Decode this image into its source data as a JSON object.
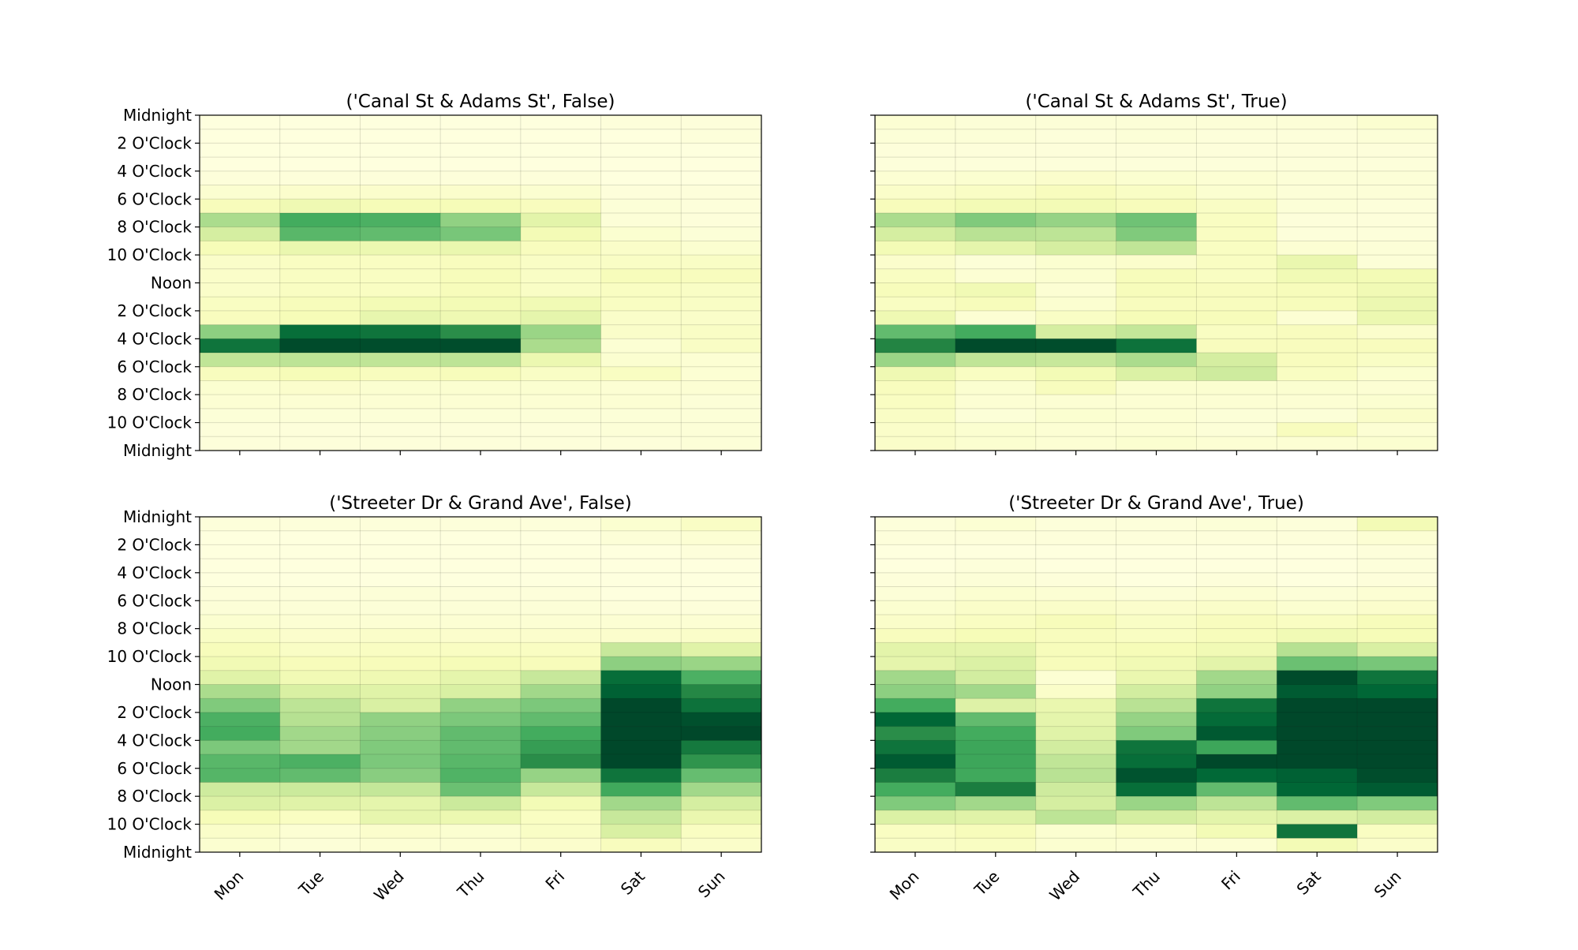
{
  "chart_data": [
    {
      "type": "heatmap",
      "title": "('Canal St & Adams St', False)",
      "colormap": "YlGn",
      "vmin": 0,
      "vmax": 1,
      "categories": [
        "Mon",
        "Tue",
        "Wed",
        "Thu",
        "Fri",
        "Sat",
        "Sun"
      ],
      "y_tick_labels": [
        "Midnight",
        "2 O'Clock",
        "4 O'Clock",
        "6 O'Clock",
        "8 O'Clock",
        "10 O'Clock",
        "Noon",
        "2 O'Clock",
        "4 O'Clock",
        "6 O'Clock",
        "8 O'Clock",
        "10 O'Clock",
        "Midnight"
      ],
      "rows": 24,
      "values": [
        [
          0.02,
          0.02,
          0.02,
          0.02,
          0.02,
          0.03,
          0.03
        ],
        [
          0.02,
          0.02,
          0.02,
          0.02,
          0.02,
          0.02,
          0.03
        ],
        [
          0.02,
          0.02,
          0.02,
          0.02,
          0.02,
          0.02,
          0.02
        ],
        [
          0.02,
          0.02,
          0.02,
          0.02,
          0.02,
          0.02,
          0.02
        ],
        [
          0.03,
          0.03,
          0.03,
          0.03,
          0.03,
          0.02,
          0.02
        ],
        [
          0.06,
          0.07,
          0.07,
          0.07,
          0.06,
          0.03,
          0.03
        ],
        [
          0.12,
          0.16,
          0.13,
          0.13,
          0.11,
          0.04,
          0.03
        ],
        [
          0.38,
          0.62,
          0.6,
          0.44,
          0.21,
          0.04,
          0.03
        ],
        [
          0.26,
          0.57,
          0.55,
          0.5,
          0.14,
          0.06,
          0.04
        ],
        [
          0.13,
          0.18,
          0.17,
          0.18,
          0.11,
          0.08,
          0.06
        ],
        [
          0.08,
          0.1,
          0.1,
          0.11,
          0.09,
          0.09,
          0.09
        ],
        [
          0.08,
          0.1,
          0.1,
          0.12,
          0.09,
          0.12,
          0.11
        ],
        [
          0.08,
          0.1,
          0.1,
          0.12,
          0.09,
          0.1,
          0.09
        ],
        [
          0.1,
          0.12,
          0.14,
          0.14,
          0.15,
          0.1,
          0.09
        ],
        [
          0.11,
          0.13,
          0.19,
          0.16,
          0.2,
          0.08,
          0.08
        ],
        [
          0.45,
          0.85,
          0.82,
          0.72,
          0.42,
          0.08,
          0.09
        ],
        [
          0.82,
          0.98,
          0.97,
          0.97,
          0.38,
          0.05,
          0.09
        ],
        [
          0.32,
          0.33,
          0.32,
          0.33,
          0.17,
          0.06,
          0.05
        ],
        [
          0.11,
          0.13,
          0.11,
          0.12,
          0.09,
          0.1,
          0.05
        ],
        [
          0.06,
          0.07,
          0.06,
          0.06,
          0.06,
          0.05,
          0.05
        ],
        [
          0.05,
          0.05,
          0.05,
          0.05,
          0.05,
          0.05,
          0.04
        ],
        [
          0.04,
          0.04,
          0.04,
          0.04,
          0.04,
          0.04,
          0.04
        ],
        [
          0.03,
          0.03,
          0.03,
          0.03,
          0.03,
          0.04,
          0.04
        ],
        [
          0.03,
          0.03,
          0.03,
          0.03,
          0.03,
          0.03,
          0.04
        ]
      ]
    },
    {
      "type": "heatmap",
      "title": "('Canal St & Adams St', True)",
      "colormap": "YlGn",
      "vmin": 0,
      "vmax": 1,
      "categories": [
        "Mon",
        "Tue",
        "Wed",
        "Thu",
        "Fri",
        "Sat",
        "Sun"
      ],
      "y_tick_labels": [],
      "rows": 24,
      "values": [
        [
          0.05,
          0.04,
          0.04,
          0.04,
          0.04,
          0.04,
          0.06
        ],
        [
          0.04,
          0.04,
          0.03,
          0.04,
          0.03,
          0.03,
          0.04
        ],
        [
          0.03,
          0.03,
          0.03,
          0.03,
          0.03,
          0.03,
          0.03
        ],
        [
          0.03,
          0.03,
          0.03,
          0.03,
          0.03,
          0.03,
          0.03
        ],
        [
          0.05,
          0.06,
          0.07,
          0.06,
          0.05,
          0.04,
          0.04
        ],
        [
          0.08,
          0.09,
          0.11,
          0.09,
          0.06,
          0.04,
          0.04
        ],
        [
          0.12,
          0.14,
          0.14,
          0.12,
          0.09,
          0.04,
          0.03
        ],
        [
          0.38,
          0.48,
          0.43,
          0.52,
          0.1,
          0.03,
          0.03
        ],
        [
          0.26,
          0.34,
          0.33,
          0.48,
          0.1,
          0.03,
          0.03
        ],
        [
          0.14,
          0.2,
          0.26,
          0.32,
          0.1,
          0.05,
          0.04
        ],
        [
          0.07,
          0.04,
          0.06,
          0.07,
          0.1,
          0.18,
          0.04
        ],
        [
          0.1,
          0.05,
          0.06,
          0.12,
          0.1,
          0.15,
          0.14
        ],
        [
          0.12,
          0.15,
          0.05,
          0.12,
          0.11,
          0.12,
          0.15
        ],
        [
          0.1,
          0.12,
          0.06,
          0.11,
          0.11,
          0.12,
          0.17
        ],
        [
          0.16,
          0.05,
          0.09,
          0.13,
          0.12,
          0.05,
          0.17
        ],
        [
          0.55,
          0.62,
          0.26,
          0.31,
          0.1,
          0.11,
          0.07
        ],
        [
          0.75,
          0.98,
          0.97,
          0.83,
          0.11,
          0.11,
          0.11
        ],
        [
          0.42,
          0.32,
          0.3,
          0.38,
          0.26,
          0.11,
          0.09
        ],
        [
          0.16,
          0.1,
          0.14,
          0.24,
          0.28,
          0.1,
          0.06
        ],
        [
          0.11,
          0.06,
          0.11,
          0.06,
          0.06,
          0.06,
          0.05
        ],
        [
          0.1,
          0.05,
          0.05,
          0.05,
          0.05,
          0.05,
          0.06
        ],
        [
          0.09,
          0.04,
          0.06,
          0.05,
          0.04,
          0.04,
          0.08
        ],
        [
          0.08,
          0.06,
          0.05,
          0.05,
          0.04,
          0.11,
          0.05
        ],
        [
          0.08,
          0.06,
          0.05,
          0.06,
          0.05,
          0.05,
          0.06
        ]
      ]
    },
    {
      "type": "heatmap",
      "title": "('Streeter Dr & Grand Ave', False)",
      "colormap": "YlGn",
      "vmin": 0,
      "vmax": 1,
      "categories": [
        "Mon",
        "Tue",
        "Wed",
        "Thu",
        "Fri",
        "Sat",
        "Sun"
      ],
      "y_tick_labels": [
        "Midnight",
        "2 O'Clock",
        "4 O'Clock",
        "6 O'Clock",
        "8 O'Clock",
        "10 O'Clock",
        "Noon",
        "2 O'Clock",
        "4 O'Clock",
        "6 O'Clock",
        "8 O'Clock",
        "10 O'Clock",
        "Midnight"
      ],
      "rows": 24,
      "values": [
        [
          0.03,
          0.03,
          0.03,
          0.03,
          0.03,
          0.06,
          0.09
        ],
        [
          0.02,
          0.02,
          0.02,
          0.02,
          0.02,
          0.04,
          0.05
        ],
        [
          0.02,
          0.02,
          0.02,
          0.02,
          0.02,
          0.02,
          0.03
        ],
        [
          0.02,
          0.02,
          0.02,
          0.02,
          0.02,
          0.02,
          0.02
        ],
        [
          0.02,
          0.02,
          0.02,
          0.02,
          0.02,
          0.02,
          0.02
        ],
        [
          0.03,
          0.03,
          0.04,
          0.03,
          0.03,
          0.02,
          0.02
        ],
        [
          0.04,
          0.04,
          0.04,
          0.04,
          0.04,
          0.03,
          0.03
        ],
        [
          0.06,
          0.05,
          0.05,
          0.05,
          0.05,
          0.05,
          0.05
        ],
        [
          0.09,
          0.07,
          0.08,
          0.07,
          0.07,
          0.07,
          0.08
        ],
        [
          0.12,
          0.09,
          0.1,
          0.1,
          0.1,
          0.3,
          0.22
        ],
        [
          0.15,
          0.12,
          0.12,
          0.13,
          0.12,
          0.45,
          0.42
        ],
        [
          0.22,
          0.15,
          0.16,
          0.2,
          0.3,
          0.85,
          0.6
        ],
        [
          0.38,
          0.25,
          0.22,
          0.25,
          0.4,
          0.9,
          0.74
        ],
        [
          0.48,
          0.33,
          0.25,
          0.44,
          0.49,
          0.99,
          0.83
        ],
        [
          0.6,
          0.35,
          0.44,
          0.49,
          0.55,
          0.99,
          0.96
        ],
        [
          0.62,
          0.4,
          0.46,
          0.55,
          0.62,
          0.99,
          0.99
        ],
        [
          0.49,
          0.4,
          0.48,
          0.55,
          0.67,
          0.99,
          0.8
        ],
        [
          0.57,
          0.6,
          0.49,
          0.57,
          0.72,
          0.99,
          0.7
        ],
        [
          0.58,
          0.55,
          0.46,
          0.59,
          0.43,
          0.82,
          0.54
        ],
        [
          0.28,
          0.29,
          0.31,
          0.53,
          0.3,
          0.63,
          0.4
        ],
        [
          0.24,
          0.22,
          0.2,
          0.29,
          0.14,
          0.4,
          0.26
        ],
        [
          0.13,
          0.1,
          0.19,
          0.17,
          0.1,
          0.3,
          0.18
        ],
        [
          0.08,
          0.05,
          0.07,
          0.06,
          0.09,
          0.25,
          0.1
        ],
        [
          0.06,
          0.04,
          0.05,
          0.05,
          0.07,
          0.11,
          0.08
        ]
      ]
    },
    {
      "type": "heatmap",
      "title": "('Streeter Dr & Grand Ave', True)",
      "colormap": "YlGn",
      "vmin": 0,
      "vmax": 1,
      "categories": [
        "Mon",
        "Tue",
        "Wed",
        "Thu",
        "Fri",
        "Sat",
        "Sun"
      ],
      "y_tick_labels": [],
      "rows": 24,
      "values": [
        [
          0.03,
          0.05,
          0.03,
          0.03,
          0.04,
          0.03,
          0.14
        ],
        [
          0.03,
          0.03,
          0.03,
          0.03,
          0.03,
          0.03,
          0.05
        ],
        [
          0.02,
          0.02,
          0.02,
          0.02,
          0.02,
          0.02,
          0.03
        ],
        [
          0.02,
          0.03,
          0.02,
          0.02,
          0.02,
          0.02,
          0.03
        ],
        [
          0.03,
          0.04,
          0.03,
          0.02,
          0.03,
          0.02,
          0.03
        ],
        [
          0.04,
          0.06,
          0.05,
          0.04,
          0.05,
          0.04,
          0.05
        ],
        [
          0.06,
          0.08,
          0.08,
          0.07,
          0.08,
          0.06,
          0.07
        ],
        [
          0.08,
          0.1,
          0.12,
          0.09,
          0.11,
          0.1,
          0.12
        ],
        [
          0.11,
          0.13,
          0.11,
          0.1,
          0.12,
          0.15,
          0.13
        ],
        [
          0.21,
          0.2,
          0.12,
          0.13,
          0.15,
          0.35,
          0.25
        ],
        [
          0.2,
          0.24,
          0.12,
          0.15,
          0.21,
          0.53,
          0.5
        ],
        [
          0.4,
          0.27,
          0.05,
          0.18,
          0.4,
          0.98,
          0.82
        ],
        [
          0.45,
          0.4,
          0.08,
          0.27,
          0.44,
          0.92,
          0.88
        ],
        [
          0.62,
          0.23,
          0.18,
          0.34,
          0.82,
          0.99,
          0.99
        ],
        [
          0.88,
          0.55,
          0.2,
          0.43,
          0.86,
          0.99,
          0.99
        ],
        [
          0.72,
          0.62,
          0.22,
          0.48,
          0.93,
          0.99,
          0.99
        ],
        [
          0.82,
          0.64,
          0.27,
          0.82,
          0.64,
          0.99,
          0.99
        ],
        [
          0.92,
          0.64,
          0.32,
          0.85,
          0.99,
          0.99,
          0.99
        ],
        [
          0.78,
          0.63,
          0.34,
          0.95,
          0.87,
          0.9,
          0.97
        ],
        [
          0.62,
          0.78,
          0.28,
          0.85,
          0.55,
          0.88,
          0.92
        ],
        [
          0.48,
          0.4,
          0.26,
          0.42,
          0.33,
          0.55,
          0.48
        ],
        [
          0.24,
          0.22,
          0.33,
          0.26,
          0.21,
          0.24,
          0.27
        ],
        [
          0.1,
          0.12,
          0.06,
          0.08,
          0.14,
          0.82,
          0.1
        ],
        [
          0.09,
          0.1,
          0.06,
          0.05,
          0.05,
          0.14,
          0.08
        ]
      ]
    }
  ]
}
